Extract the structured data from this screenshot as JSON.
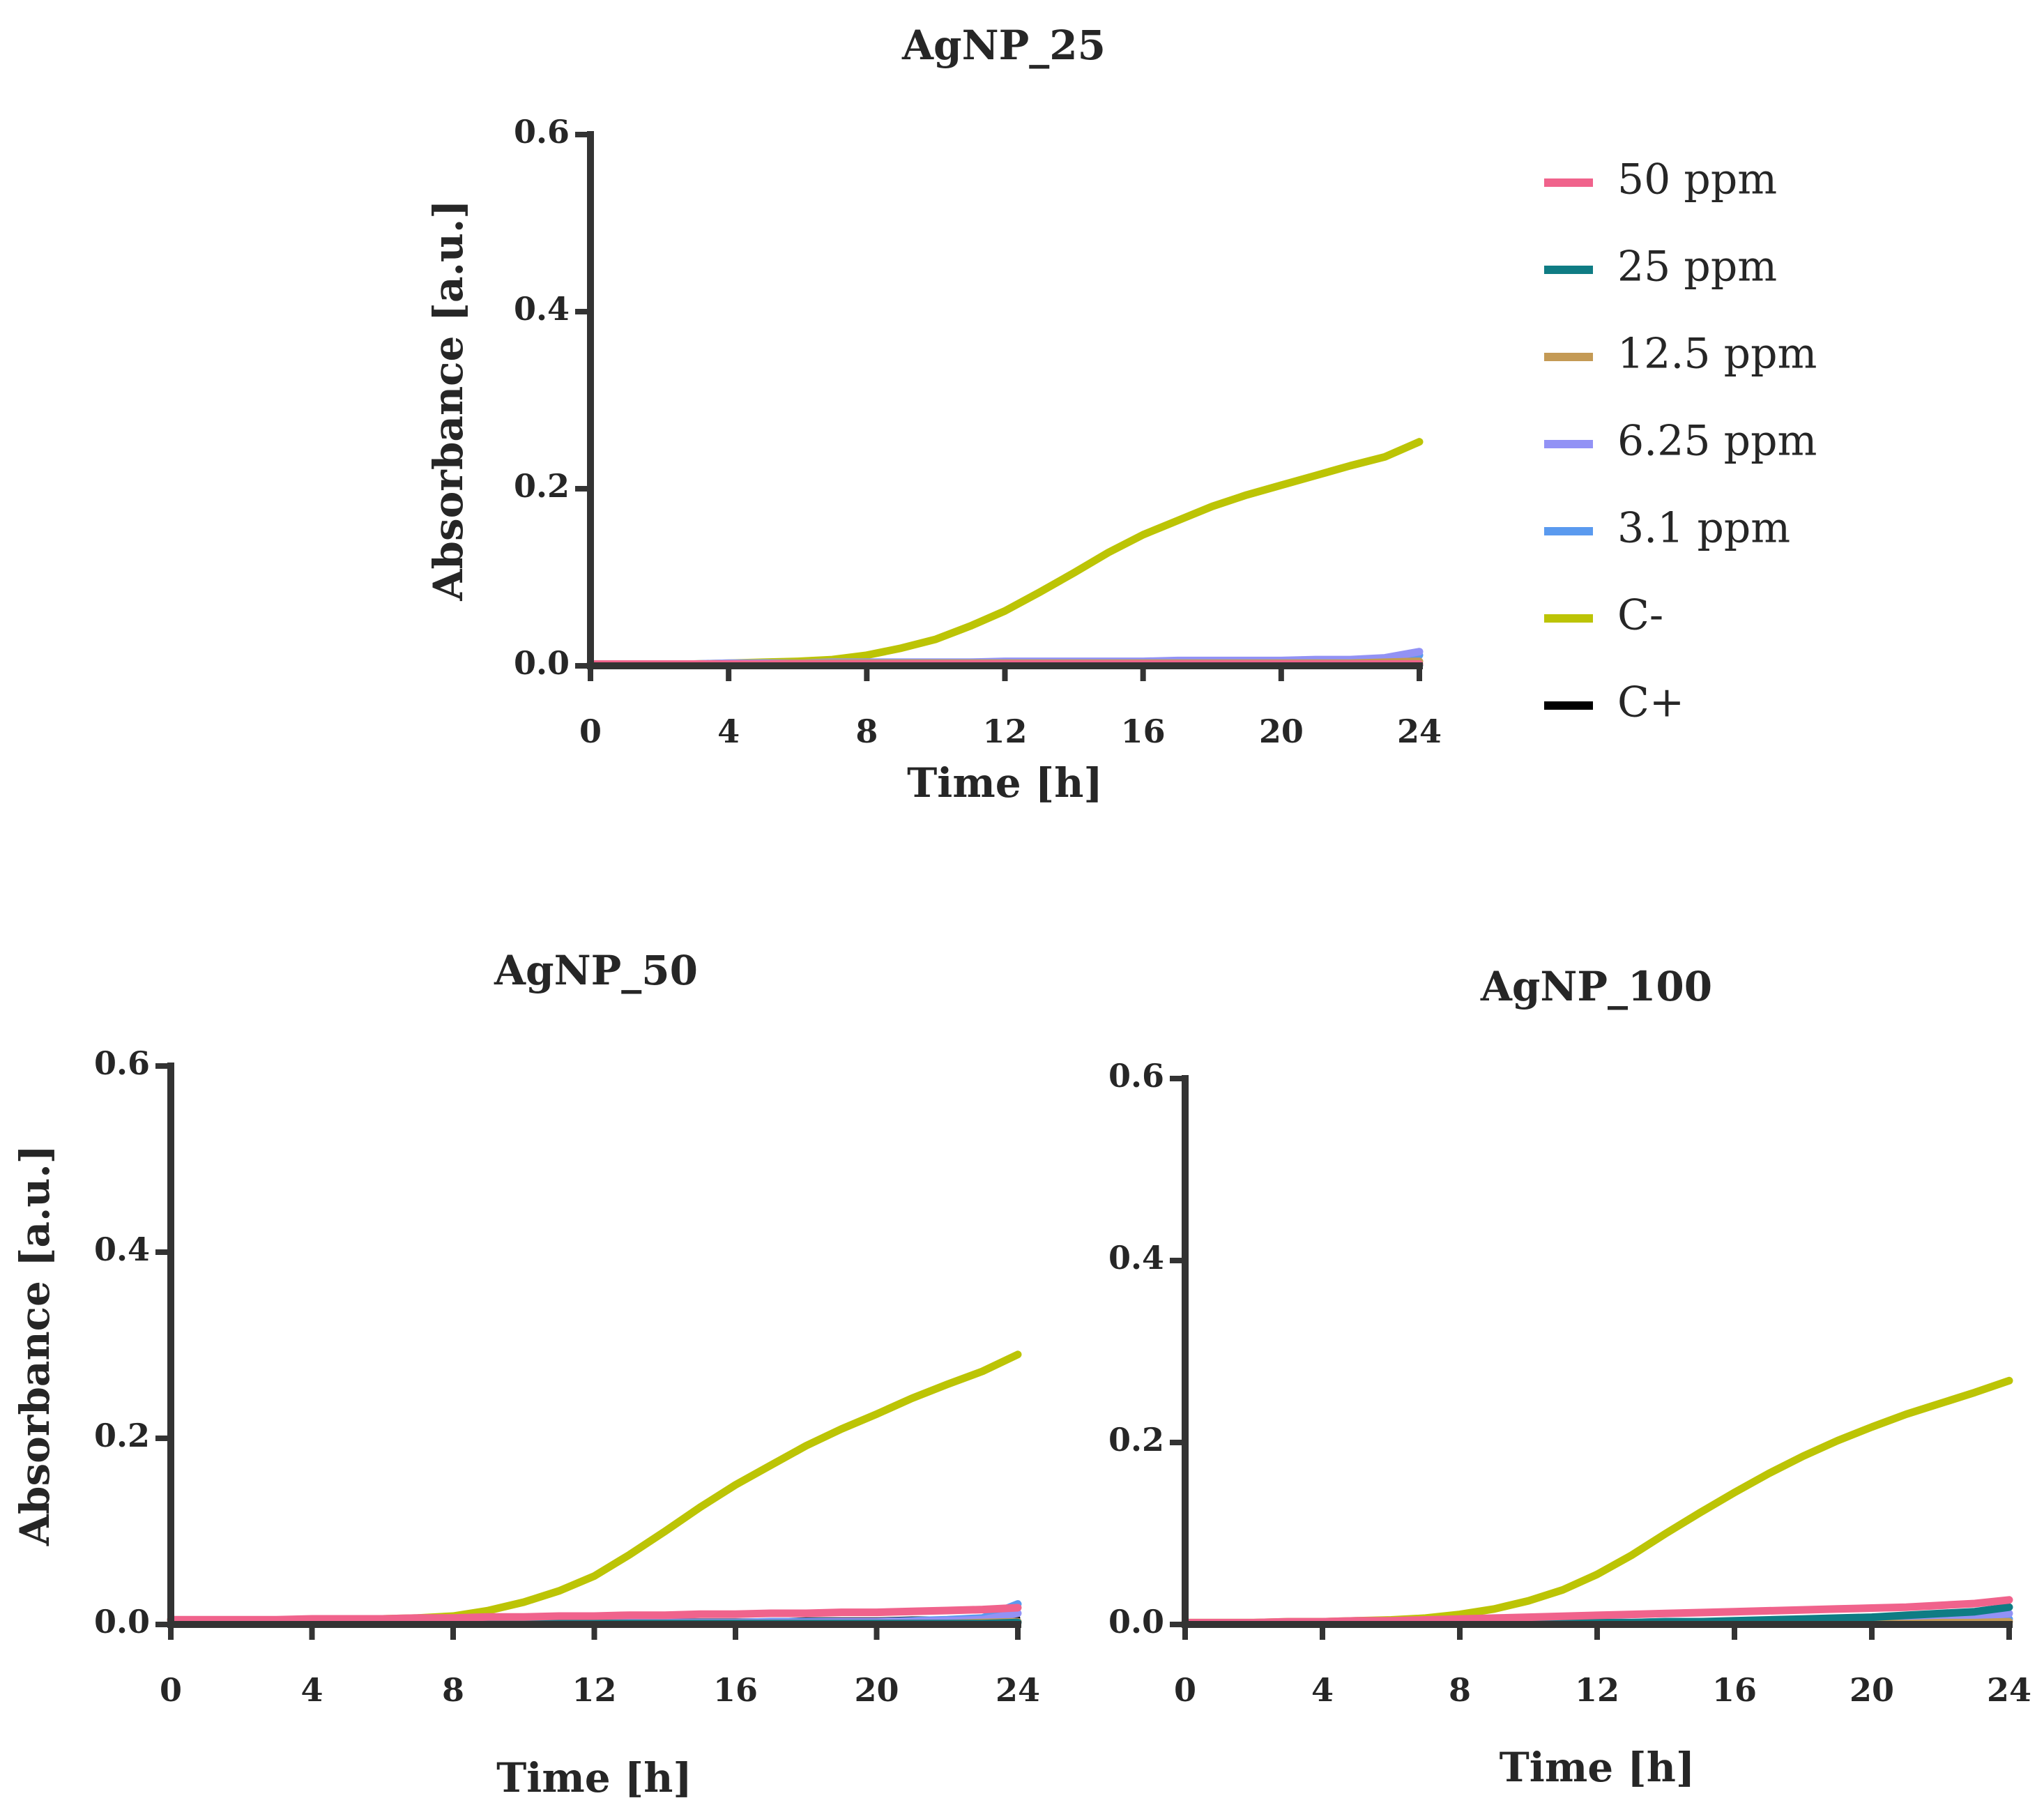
{
  "legend": [
    {
      "label": "50 ppm",
      "color": "#f0638c"
    },
    {
      "label": "25 ppm",
      "color": "#0f7c84"
    },
    {
      "label": "12.5 ppm",
      "color": "#c49a55"
    },
    {
      "label": "6.25 ppm",
      "color": "#9292f5"
    },
    {
      "label": "3.1 ppm",
      "color": "#5a9aef"
    },
    {
      "label": "C-",
      "color": "#bcc405"
    },
    {
      "label": "C+",
      "color": "#000000"
    }
  ],
  "chart_data": [
    {
      "type": "line",
      "title": "AgNP_25",
      "xlabel": "Time [h]",
      "ylabel": "Absorbance [a.u.]",
      "xlim": [
        0,
        24
      ],
      "ylim": [
        0,
        0.6
      ],
      "xticks": [
        "0",
        "4",
        "8",
        "12",
        "16",
        "20",
        "24"
      ],
      "yticks": [
        "0.0",
        "0.2",
        "0.4",
        "0.6"
      ],
      "x": [
        0,
        1,
        2,
        3,
        4,
        5,
        6,
        7,
        8,
        9,
        10,
        11,
        12,
        13,
        14,
        15,
        16,
        17,
        18,
        19,
        20,
        21,
        22,
        23,
        24
      ],
      "series": [
        {
          "name": "C+",
          "values": [
            0.002,
            0.002,
            0.002,
            0.002,
            0.002,
            0.002,
            0.002,
            0.002,
            0.002,
            0.002,
            0.002,
            0.002,
            0.002,
            0.002,
            0.002,
            0.002,
            0.002,
            0.002,
            0.002,
            0.002,
            0.002,
            0.002,
            0.002,
            0.002,
            0.002
          ]
        },
        {
          "name": "C-",
          "values": [
            0.002,
            0.002,
            0.002,
            0.002,
            0.003,
            0.004,
            0.005,
            0.007,
            0.012,
            0.02,
            0.03,
            0.045,
            0.062,
            0.083,
            0.105,
            0.128,
            0.148,
            0.164,
            0.18,
            0.193,
            0.204,
            0.215,
            0.226,
            0.236,
            0.253
          ]
        },
        {
          "name": "3.1 ppm",
          "values": [
            0.002,
            0.002,
            0.002,
            0.002,
            0.002,
            0.003,
            0.003,
            0.003,
            0.004,
            0.004,
            0.004,
            0.004,
            0.004,
            0.004,
            0.004,
            0.004,
            0.004,
            0.005,
            0.005,
            0.005,
            0.005,
            0.005,
            0.006,
            0.007,
            0.012
          ]
        },
        {
          "name": "6.25 ppm",
          "values": [
            0.002,
            0.002,
            0.002,
            0.002,
            0.003,
            0.003,
            0.003,
            0.004,
            0.004,
            0.004,
            0.004,
            0.004,
            0.005,
            0.005,
            0.005,
            0.005,
            0.005,
            0.006,
            0.006,
            0.006,
            0.006,
            0.007,
            0.007,
            0.009,
            0.016
          ]
        },
        {
          "name": "12.5 ppm",
          "values": [
            0.002,
            0.002,
            0.002,
            0.002,
            0.002,
            0.002,
            0.003,
            0.003,
            0.003,
            0.003,
            0.003,
            0.003,
            0.003,
            0.003,
            0.003,
            0.003,
            0.003,
            0.003,
            0.003,
            0.003,
            0.003,
            0.003,
            0.003,
            0.004,
            0.005
          ]
        },
        {
          "name": "25 ppm",
          "values": [
            0.001,
            0.001,
            0.001,
            0.001,
            0.001,
            0.001,
            0.001,
            0.001,
            0.001,
            0.001,
            0.001,
            0.001,
            0.001,
            0.001,
            0.001,
            0.001,
            0.001,
            0.001,
            0.001,
            0.001,
            0.001,
            0.001,
            0.001,
            0.001,
            0.001
          ]
        },
        {
          "name": "50 ppm",
          "values": [
            0.002,
            0.002,
            0.002,
            0.002,
            0.002,
            0.002,
            0.002,
            0.002,
            0.002,
            0.002,
            0.002,
            0.002,
            0.002,
            0.002,
            0.002,
            0.002,
            0.002,
            0.002,
            0.002,
            0.002,
            0.002,
            0.002,
            0.002,
            0.002,
            0.002
          ]
        }
      ]
    },
    {
      "type": "line",
      "title": "AgNP_50",
      "xlabel": "Time [h]",
      "ylabel": "Absorbance [a.u.]",
      "xlim": [
        0,
        24
      ],
      "ylim": [
        0,
        0.6
      ],
      "xticks": [
        "0",
        "4",
        "8",
        "12",
        "16",
        "20",
        "24"
      ],
      "yticks": [
        "0.0",
        "0.2",
        "0.4",
        "0.6"
      ],
      "x": [
        0,
        1,
        2,
        3,
        4,
        5,
        6,
        7,
        8,
        9,
        10,
        11,
        12,
        13,
        14,
        15,
        16,
        17,
        18,
        19,
        20,
        21,
        22,
        23,
        24
      ],
      "series": [
        {
          "name": "C+",
          "values": [
            0.002,
            0.002,
            0.002,
            0.002,
            0.002,
            0.002,
            0.002,
            0.003,
            0.003,
            0.003,
            0.003,
            0.003,
            0.003,
            0.003,
            0.004,
            0.004,
            0.004,
            0.004,
            0.005,
            0.005,
            0.005,
            0.006,
            0.006,
            0.006,
            0.007
          ]
        },
        {
          "name": "C-",
          "values": [
            0.005,
            0.004,
            0.004,
            0.004,
            0.005,
            0.006,
            0.006,
            0.007,
            0.009,
            0.015,
            0.024,
            0.036,
            0.052,
            0.075,
            0.1,
            0.126,
            0.15,
            0.171,
            0.192,
            0.21,
            0.226,
            0.243,
            0.258,
            0.272,
            0.29
          ]
        },
        {
          "name": "3.1 ppm",
          "values": [
            0.001,
            0.001,
            0.001,
            0.001,
            0.001,
            0.001,
            0.001,
            0.001,
            0.001,
            0.002,
            0.002,
            0.002,
            0.002,
            0.002,
            0.002,
            0.002,
            0.002,
            0.003,
            0.003,
            0.003,
            0.003,
            0.004,
            0.005,
            0.007,
            0.022
          ]
        },
        {
          "name": "6.25 ppm",
          "values": [
            0.001,
            0.001,
            0.001,
            0.001,
            0.001,
            0.001,
            0.001,
            0.001,
            0.001,
            0.001,
            0.002,
            0.002,
            0.002,
            0.002,
            0.002,
            0.002,
            0.002,
            0.002,
            0.002,
            0.003,
            0.003,
            0.003,
            0.004,
            0.005,
            0.012
          ]
        },
        {
          "name": "12.5 ppm",
          "values": [
            0.001,
            0.001,
            0.001,
            0.001,
            0.001,
            0.001,
            0.001,
            0.001,
            0.001,
            0.001,
            0.001,
            0.001,
            0.001,
            0.001,
            0.001,
            0.001,
            0.001,
            0.001,
            0.001,
            0.001,
            0.001,
            0.001,
            0.001,
            0.002,
            0.003
          ]
        },
        {
          "name": "25 ppm",
          "values": [
            0.001,
            0.001,
            0.001,
            0.001,
            0.001,
            0.001,
            0.001,
            0.001,
            0.001,
            0.001,
            0.001,
            0.001,
            0.001,
            0.001,
            0.001,
            0.001,
            0.001,
            0.001,
            0.001,
            0.001,
            0.001,
            0.001,
            0.001,
            0.001,
            0.002
          ]
        },
        {
          "name": "50 ppm",
          "values": [
            0.005,
            0.005,
            0.005,
            0.005,
            0.006,
            0.006,
            0.006,
            0.007,
            0.007,
            0.008,
            0.008,
            0.009,
            0.009,
            0.01,
            0.01,
            0.011,
            0.011,
            0.012,
            0.012,
            0.013,
            0.013,
            0.014,
            0.015,
            0.016,
            0.018
          ]
        }
      ]
    },
    {
      "type": "line",
      "title": "AgNP_100",
      "xlabel": "Time [h]",
      "ylabel": "",
      "xlim": [
        0,
        24
      ],
      "ylim": [
        0,
        0.6
      ],
      "xticks": [
        "0",
        "4",
        "8",
        "12",
        "16",
        "20",
        "24"
      ],
      "yticks": [
        "0.0",
        "0.2",
        "0.4",
        "0.6"
      ],
      "x": [
        0,
        1,
        2,
        3,
        4,
        5,
        6,
        7,
        8,
        9,
        10,
        11,
        12,
        13,
        14,
        15,
        16,
        17,
        18,
        19,
        20,
        21,
        22,
        23,
        24
      ],
      "series": [
        {
          "name": "C+",
          "values": [
            0.001,
            0.001,
            0.001,
            0.001,
            0.001,
            0.001,
            0.001,
            0.001,
            0.001,
            0.001,
            0.001,
            0.001,
            0.001,
            0.001,
            0.001,
            0.001,
            0.001,
            0.001,
            0.001,
            0.001,
            0.001,
            0.001,
            0.001,
            0.001,
            0.001
          ]
        },
        {
          "name": "C-",
          "values": [
            0.002,
            0.002,
            0.002,
            0.003,
            0.003,
            0.004,
            0.005,
            0.007,
            0.011,
            0.017,
            0.026,
            0.038,
            0.055,
            0.076,
            0.1,
            0.123,
            0.145,
            0.166,
            0.185,
            0.202,
            0.217,
            0.231,
            0.243,
            0.255,
            0.268
          ]
        },
        {
          "name": "3.1 ppm",
          "values": [
            0.001,
            0.001,
            0.001,
            0.001,
            0.001,
            0.001,
            0.001,
            0.001,
            0.002,
            0.002,
            0.002,
            0.002,
            0.002,
            0.002,
            0.003,
            0.003,
            0.003,
            0.003,
            0.003,
            0.004,
            0.004,
            0.004,
            0.005,
            0.005,
            0.006
          ]
        },
        {
          "name": "6.25 ppm",
          "values": [
            0.001,
            0.001,
            0.001,
            0.001,
            0.001,
            0.001,
            0.001,
            0.001,
            0.001,
            0.002,
            0.002,
            0.002,
            0.002,
            0.002,
            0.002,
            0.003,
            0.003,
            0.003,
            0.003,
            0.004,
            0.004,
            0.005,
            0.006,
            0.008,
            0.012
          ]
        },
        {
          "name": "12.5 ppm",
          "values": [
            0.001,
            0.001,
            0.001,
            0.001,
            0.001,
            0.001,
            0.001,
            0.001,
            0.001,
            0.001,
            0.001,
            0.001,
            0.001,
            0.001,
            0.001,
            0.001,
            0.001,
            0.001,
            0.001,
            0.001,
            0.001,
            0.001,
            0.002,
            0.002,
            0.003
          ]
        },
        {
          "name": "25 ppm",
          "values": [
            0.001,
            0.001,
            0.001,
            0.001,
            0.001,
            0.001,
            0.001,
            0.001,
            0.001,
            0.001,
            0.001,
            0.002,
            0.002,
            0.002,
            0.003,
            0.003,
            0.004,
            0.005,
            0.006,
            0.007,
            0.008,
            0.01,
            0.012,
            0.014,
            0.019
          ]
        },
        {
          "name": "50 ppm",
          "values": [
            0.002,
            0.002,
            0.002,
            0.003,
            0.003,
            0.004,
            0.004,
            0.005,
            0.006,
            0.007,
            0.008,
            0.009,
            0.01,
            0.011,
            0.012,
            0.013,
            0.014,
            0.015,
            0.016,
            0.017,
            0.018,
            0.019,
            0.021,
            0.023,
            0.027
          ]
        }
      ]
    }
  ]
}
